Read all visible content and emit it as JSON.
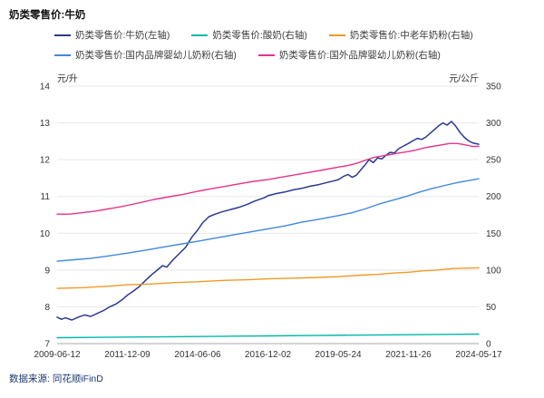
{
  "header": {
    "title": "奶类零售价:牛奶"
  },
  "chart_data": {
    "type": "line",
    "title": "奶类零售价:牛奶",
    "source": "数据来源: 同花顺iFinD",
    "x_tick_labels": [
      "2009-06-12",
      "2011-12-09",
      "2014-06-06",
      "2016-12-02",
      "2019-05-24",
      "2021-11-26",
      "2024-05-17"
    ],
    "left_axis": {
      "label": "元/升",
      "min": 7,
      "max": 14,
      "tick_step": 1
    },
    "right_axis": {
      "label": "元/公斤",
      "min": 0,
      "max": 350,
      "tick_step": 50
    },
    "grid": "horizontal",
    "legend_position": "top",
    "series": [
      {
        "name": "奶类零售价:牛奶(左轴)",
        "axis": "left",
        "color": "#2a3b8f",
        "points": [
          [
            0,
            7.72
          ],
          [
            0.01,
            7.66
          ],
          [
            0.02,
            7.7
          ],
          [
            0.035,
            7.64
          ],
          [
            0.05,
            7.72
          ],
          [
            0.065,
            7.78
          ],
          [
            0.08,
            7.74
          ],
          [
            0.095,
            7.82
          ],
          [
            0.11,
            7.9
          ],
          [
            0.125,
            8.0
          ],
          [
            0.14,
            8.08
          ],
          [
            0.155,
            8.2
          ],
          [
            0.167,
            8.32
          ],
          [
            0.18,
            8.42
          ],
          [
            0.195,
            8.55
          ],
          [
            0.21,
            8.72
          ],
          [
            0.225,
            8.88
          ],
          [
            0.24,
            9.02
          ],
          [
            0.25,
            9.12
          ],
          [
            0.26,
            9.08
          ],
          [
            0.275,
            9.28
          ],
          [
            0.29,
            9.45
          ],
          [
            0.305,
            9.62
          ],
          [
            0.32,
            9.9
          ],
          [
            0.333,
            10.08
          ],
          [
            0.345,
            10.28
          ],
          [
            0.36,
            10.45
          ],
          [
            0.375,
            10.52
          ],
          [
            0.39,
            10.58
          ],
          [
            0.41,
            10.64
          ],
          [
            0.43,
            10.7
          ],
          [
            0.45,
            10.78
          ],
          [
            0.47,
            10.88
          ],
          [
            0.49,
            10.96
          ],
          [
            0.5,
            11.02
          ],
          [
            0.52,
            11.08
          ],
          [
            0.54,
            11.12
          ],
          [
            0.56,
            11.18
          ],
          [
            0.58,
            11.22
          ],
          [
            0.6,
            11.28
          ],
          [
            0.62,
            11.32
          ],
          [
            0.64,
            11.38
          ],
          [
            0.655,
            11.42
          ],
          [
            0.667,
            11.46
          ],
          [
            0.68,
            11.55
          ],
          [
            0.69,
            11.6
          ],
          [
            0.7,
            11.52
          ],
          [
            0.71,
            11.58
          ],
          [
            0.72,
            11.72
          ],
          [
            0.73,
            11.85
          ],
          [
            0.74,
            12.0
          ],
          [
            0.75,
            11.92
          ],
          [
            0.76,
            12.05
          ],
          [
            0.77,
            12.02
          ],
          [
            0.78,
            12.12
          ],
          [
            0.79,
            12.2
          ],
          [
            0.8,
            12.18
          ],
          [
            0.81,
            12.3
          ],
          [
            0.82,
            12.36
          ],
          [
            0.833,
            12.44
          ],
          [
            0.845,
            12.52
          ],
          [
            0.855,
            12.58
          ],
          [
            0.865,
            12.55
          ],
          [
            0.875,
            12.62
          ],
          [
            0.885,
            12.72
          ],
          [
            0.895,
            12.82
          ],
          [
            0.905,
            12.92
          ],
          [
            0.915,
            13.0
          ],
          [
            0.925,
            12.94
          ],
          [
            0.935,
            13.04
          ],
          [
            0.945,
            12.92
          ],
          [
            0.955,
            12.75
          ],
          [
            0.965,
            12.62
          ],
          [
            0.975,
            12.52
          ],
          [
            0.985,
            12.46
          ],
          [
            1,
            12.42
          ]
        ]
      },
      {
        "name": "奶类零售价:酸奶(右轴)",
        "axis": "right",
        "color": "#00b8a9",
        "points": [
          [
            0,
            8
          ],
          [
            0.1,
            8.5
          ],
          [
            0.2,
            9
          ],
          [
            0.3,
            9.5
          ],
          [
            0.4,
            10
          ],
          [
            0.5,
            10.5
          ],
          [
            0.6,
            11
          ],
          [
            0.7,
            11.5
          ],
          [
            0.8,
            12
          ],
          [
            0.9,
            12.5
          ],
          [
            1,
            13
          ]
        ]
      },
      {
        "name": "奶类零售价:中老年奶粉(右轴)",
        "axis": "right",
        "color": "#ef9a23",
        "points": [
          [
            0,
            75
          ],
          [
            0.06,
            76
          ],
          [
            0.12,
            78
          ],
          [
            0.167,
            80
          ],
          [
            0.22,
            81
          ],
          [
            0.28,
            83
          ],
          [
            0.333,
            84
          ],
          [
            0.4,
            86
          ],
          [
            0.46,
            87
          ],
          [
            0.5,
            88
          ],
          [
            0.56,
            89
          ],
          [
            0.62,
            90
          ],
          [
            0.667,
            91
          ],
          [
            0.72,
            93
          ],
          [
            0.76,
            94
          ],
          [
            0.8,
            96
          ],
          [
            0.833,
            97
          ],
          [
            0.87,
            99
          ],
          [
            0.9,
            100
          ],
          [
            0.94,
            102
          ],
          [
            1,
            103
          ]
        ]
      },
      {
        "name": "奶类零售价:国内品牌婴幼儿奶粉(右轴)",
        "axis": "right",
        "color": "#4189dd",
        "points": [
          [
            0,
            112
          ],
          [
            0.04,
            114
          ],
          [
            0.08,
            116
          ],
          [
            0.12,
            119
          ],
          [
            0.167,
            123
          ],
          [
            0.21,
            127
          ],
          [
            0.25,
            131
          ],
          [
            0.29,
            135
          ],
          [
            0.333,
            139
          ],
          [
            0.38,
            144
          ],
          [
            0.42,
            148
          ],
          [
            0.46,
            152
          ],
          [
            0.5,
            156
          ],
          [
            0.54,
            160
          ],
          [
            0.58,
            165
          ],
          [
            0.62,
            169
          ],
          [
            0.667,
            174
          ],
          [
            0.7,
            178
          ],
          [
            0.73,
            183
          ],
          [
            0.76,
            189
          ],
          [
            0.79,
            194
          ],
          [
            0.81,
            197
          ],
          [
            0.833,
            201
          ],
          [
            0.86,
            206
          ],
          [
            0.89,
            211
          ],
          [
            0.92,
            215
          ],
          [
            0.95,
            219
          ],
          [
            0.97,
            221
          ],
          [
            1,
            224
          ]
        ]
      },
      {
        "name": "奶类零售价:国外品牌婴幼儿奶粉(右轴)",
        "axis": "right",
        "color": "#e6338c",
        "points": [
          [
            0,
            176
          ],
          [
            0.03,
            176
          ],
          [
            0.06,
            178
          ],
          [
            0.09,
            180
          ],
          [
            0.12,
            183
          ],
          [
            0.15,
            186
          ],
          [
            0.167,
            188
          ],
          [
            0.2,
            192
          ],
          [
            0.23,
            196
          ],
          [
            0.26,
            199
          ],
          [
            0.3,
            203
          ],
          [
            0.333,
            207
          ],
          [
            0.37,
            211
          ],
          [
            0.4,
            214
          ],
          [
            0.43,
            217
          ],
          [
            0.46,
            220
          ],
          [
            0.5,
            223
          ],
          [
            0.53,
            226
          ],
          [
            0.56,
            229
          ],
          [
            0.6,
            233
          ],
          [
            0.63,
            236
          ],
          [
            0.667,
            240
          ],
          [
            0.69,
            242
          ],
          [
            0.71,
            245
          ],
          [
            0.73,
            249
          ],
          [
            0.75,
            253
          ],
          [
            0.77,
            255
          ],
          [
            0.79,
            257
          ],
          [
            0.81,
            259
          ],
          [
            0.833,
            261
          ],
          [
            0.85,
            263
          ],
          [
            0.87,
            266
          ],
          [
            0.89,
            268
          ],
          [
            0.91,
            270
          ],
          [
            0.93,
            272
          ],
          [
            0.95,
            272
          ],
          [
            0.97,
            270
          ],
          [
            0.985,
            268
          ],
          [
            1,
            268
          ]
        ]
      }
    ]
  }
}
